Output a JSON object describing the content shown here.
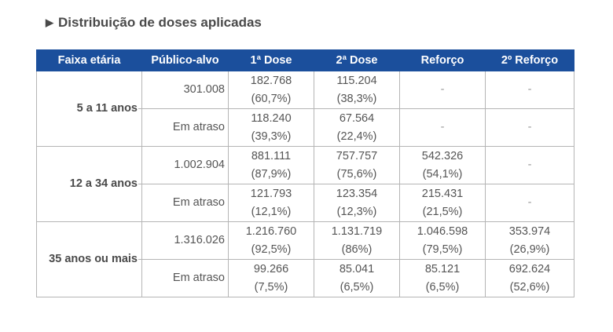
{
  "title": "Distribuição de doses aplicadas",
  "headers": [
    "Faixa etária",
    "Público-alvo",
    "1ª Dose",
    "2ª Dose",
    "Reforço",
    "2º Reforço"
  ],
  "groups": [
    {
      "age": "5 a 11 anos",
      "rows": [
        {
          "publico": "301.008",
          "cells": [
            [
              "182.768",
              "(60,7%)"
            ],
            [
              "115.204",
              "(38,3%)"
            ],
            [
              "-",
              ""
            ],
            [
              "-",
              ""
            ]
          ]
        },
        {
          "publico": "Em atraso",
          "cells": [
            [
              "118.240",
              "(39,3%)"
            ],
            [
              "67.564",
              "(22,4%)"
            ],
            [
              "-",
              ""
            ],
            [
              "-",
              ""
            ]
          ]
        }
      ]
    },
    {
      "age": "12 a 34 anos",
      "rows": [
        {
          "publico": "1.002.904",
          "cells": [
            [
              "881.111",
              "(87,9%)"
            ],
            [
              "757.757",
              "(75,6%)"
            ],
            [
              "542.326",
              "(54,1%)"
            ],
            [
              "-",
              ""
            ]
          ]
        },
        {
          "publico": "Em atraso",
          "cells": [
            [
              "121.793",
              "(12,1%)"
            ],
            [
              "123.354",
              "(12,3%)"
            ],
            [
              "215.431",
              "(21,5%)"
            ],
            [
              "-",
              ""
            ]
          ]
        }
      ]
    },
    {
      "age": "35 anos ou mais",
      "rows": [
        {
          "publico": "1.316.026",
          "cells": [
            [
              "1.216.760",
              "(92,5%)"
            ],
            [
              "1.131.719",
              "(86%)"
            ],
            [
              "1.046.598",
              "(79,5%)"
            ],
            [
              "353.974",
              "(26,9%)"
            ]
          ]
        },
        {
          "publico": "Em atraso",
          "cells": [
            [
              "99.266",
              "(7,5%)"
            ],
            [
              "85.041",
              "(6,5%)"
            ],
            [
              "85.121",
              "(6,5%)"
            ],
            [
              "692.624",
              "(52,6%)"
            ]
          ]
        }
      ]
    }
  ]
}
